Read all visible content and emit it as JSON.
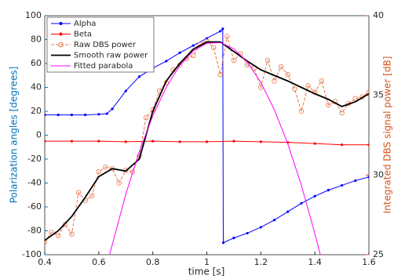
{
  "chart_data": {
    "type": "line",
    "xlabel": "time [s]",
    "ylabel": "Polarization angles [degrees]",
    "y2label": "Integrated DBS signal power [dB]",
    "xlim": [
      0.4,
      1.6
    ],
    "xticks": [
      0.4,
      0.6,
      0.8,
      1,
      1.2,
      1.4,
      1.6
    ],
    "ylim": [
      -100,
      100
    ],
    "yticks": [
      -100,
      -80,
      -60,
      -40,
      -20,
      0,
      20,
      40,
      60,
      80,
      100
    ],
    "y2lim": [
      25,
      40
    ],
    "y2ticks": [
      25,
      30,
      35,
      40
    ],
    "ylabel_color": "#0072bd",
    "y2label_color": "#d95319",
    "legend": "upper left",
    "series": [
      {
        "name": "Alpha",
        "color": "#0000ff",
        "axis": "y",
        "line_style": "solid",
        "marker": "dot",
        "x": [
          0.4,
          0.45,
          0.5,
          0.55,
          0.6,
          0.63,
          0.65,
          0.7,
          0.75,
          0.8,
          0.85,
          0.9,
          0.95,
          1.0,
          1.05,
          1.059,
          1.061,
          1.1,
          1.15,
          1.2,
          1.25,
          1.3,
          1.35,
          1.4,
          1.45,
          1.5,
          1.55,
          1.6
        ],
        "values": [
          17,
          17,
          17,
          17,
          17.5,
          18,
          22,
          37,
          49,
          56,
          62,
          69,
          75,
          81,
          87,
          89,
          -90,
          -86,
          -82,
          -77,
          -71,
          -64,
          -57,
          -51,
          -46,
          -42,
          -38,
          -35
        ]
      },
      {
        "name": "Beta",
        "color": "#ff0000",
        "axis": "y",
        "line_style": "solid",
        "marker": "dot",
        "x": [
          0.4,
          0.5,
          0.6,
          0.7,
          0.8,
          0.9,
          1.0,
          1.1,
          1.2,
          1.3,
          1.4,
          1.5,
          1.6
        ],
        "values": [
          -5,
          -5,
          -5,
          -5.5,
          -5,
          -5.5,
          -5.5,
          -5,
          -5.5,
          -6,
          -7,
          -8,
          -8
        ]
      },
      {
        "name": "Raw DBS power",
        "color": "#e8774a",
        "axis": "y2",
        "line_style": "dashed",
        "marker": "circle",
        "x": [
          0.4,
          0.425,
          0.45,
          0.475,
          0.5,
          0.525,
          0.55,
          0.575,
          0.6,
          0.625,
          0.65,
          0.675,
          0.7,
          0.725,
          0.75,
          0.775,
          0.8,
          0.825,
          0.85,
          0.875,
          0.9,
          0.925,
          0.95,
          0.975,
          1.0,
          1.025,
          1.05,
          1.075,
          1.1,
          1.125,
          1.15,
          1.175,
          1.2,
          1.225,
          1.25,
          1.275,
          1.3,
          1.325,
          1.35,
          1.375,
          1.4,
          1.425,
          1.45,
          1.475,
          1.5,
          1.525,
          1.55,
          1.575,
          1.6
        ],
        "values": [
          25.8,
          26.4,
          26.2,
          26.9,
          26.3,
          28.9,
          28.4,
          28.7,
          30.2,
          30.5,
          30.4,
          29.5,
          30.3,
          30.2,
          31.2,
          33.6,
          34.1,
          35.3,
          35.8,
          36.6,
          36.9,
          37.3,
          37.5,
          38.2,
          38.4,
          38.0,
          36.3,
          38.7,
          37.2,
          37.6,
          36.9,
          36.7,
          35.5,
          37.2,
          35.9,
          36.8,
          36.3,
          35.4,
          34.0,
          35.6,
          35.2,
          35.9,
          34.4,
          34.6,
          33.9,
          34.5,
          34.8,
          34.9,
          35.2
        ]
      },
      {
        "name": "Smooth raw power",
        "color": "#000000",
        "axis": "y2",
        "line_style": "solid",
        "marker": "none",
        "x": [
          0.4,
          0.45,
          0.5,
          0.55,
          0.6,
          0.65,
          0.7,
          0.75,
          0.8,
          0.85,
          0.9,
          0.95,
          1.0,
          1.05,
          1.1,
          1.15,
          1.2,
          1.25,
          1.3,
          1.35,
          1.4,
          1.45,
          1.5,
          1.55,
          1.6
        ],
        "values": [
          25.9,
          26.5,
          27.4,
          28.6,
          29.9,
          30.4,
          30.25,
          31.0,
          34.0,
          35.9,
          37.0,
          37.9,
          38.35,
          38.35,
          37.75,
          37.15,
          36.6,
          36.25,
          35.9,
          35.5,
          35.1,
          34.75,
          34.3,
          34.6,
          35.1
        ]
      },
      {
        "name": "Fitted parabola",
        "color": "#ff00ff",
        "axis": "y2",
        "line_style": "solid",
        "marker": "none",
        "x": [
          0.64,
          0.7,
          0.75,
          0.8,
          0.85,
          0.9,
          0.95,
          1.0,
          1.05,
          1.1,
          1.15,
          1.2,
          1.25,
          1.3,
          1.35,
          1.4,
          1.42
        ],
        "values": [
          25.0,
          28.79,
          31.47,
          33.71,
          35.51,
          36.87,
          37.79,
          38.27,
          38.31,
          37.92,
          37.09,
          35.81,
          34.1,
          31.95,
          29.36,
          26.33,
          25.0
        ]
      }
    ]
  }
}
